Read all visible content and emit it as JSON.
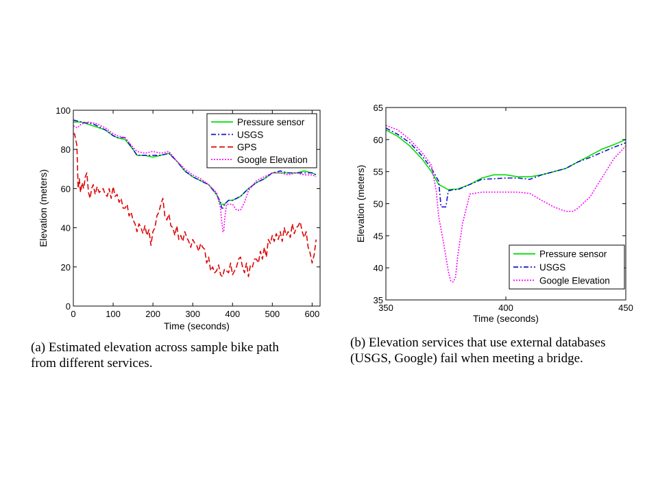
{
  "chart_data": [
    {
      "type": "line",
      "xlabel": "Time (seconds)",
      "ylabel": "Elevation (meters)",
      "xlim": [
        0,
        620
      ],
      "ylim": [
        0,
        100
      ],
      "xticks": [
        0,
        100,
        200,
        300,
        400,
        500,
        600
      ],
      "yticks": [
        0,
        20,
        40,
        60,
        80,
        100
      ],
      "legend_position": "top-right",
      "grid": false,
      "series": [
        {
          "name": "Pressure sensor",
          "color": "#00dd00",
          "style": "solid",
          "x": [
            0,
            20,
            50,
            80,
            100,
            110,
            130,
            150,
            160,
            180,
            200,
            220,
            240,
            260,
            280,
            300,
            320,
            340,
            360,
            370,
            380,
            390,
            400,
            420,
            440,
            460,
            480,
            500,
            520,
            540,
            560,
            580,
            600,
            610
          ],
          "y": [
            94,
            94,
            92,
            90,
            87,
            86,
            85,
            80,
            77,
            77,
            76,
            77,
            78,
            74,
            69,
            66,
            64,
            62,
            57,
            52,
            52,
            54,
            54,
            56,
            60,
            63,
            65,
            68,
            68,
            68,
            68,
            69,
            68,
            67
          ]
        },
        {
          "name": "USGS",
          "color": "#1010cc",
          "style": "dashdot",
          "x": [
            0,
            20,
            50,
            80,
            100,
            110,
            130,
            150,
            160,
            180,
            200,
            220,
            240,
            260,
            280,
            300,
            320,
            340,
            360,
            370,
            373,
            376,
            380,
            390,
            400,
            420,
            440,
            460,
            480,
            500,
            520,
            540,
            560,
            580,
            600,
            610
          ],
          "y": [
            95,
            94,
            93,
            90,
            87,
            86,
            86,
            80,
            77,
            77,
            77,
            77,
            78,
            74,
            69,
            66,
            64,
            62,
            57,
            53,
            50,
            50,
            52,
            54,
            54,
            56,
            60,
            63,
            65,
            68,
            69,
            68,
            68,
            68,
            68,
            67
          ]
        },
        {
          "name": "GPS",
          "color": "#dd0000",
          "style": "dashed",
          "x": [
            0,
            3,
            6,
            9,
            12,
            15,
            18,
            22,
            26,
            30,
            34,
            38,
            42,
            46,
            50,
            55,
            60,
            65,
            70,
            75,
            80,
            85,
            90,
            95,
            100,
            105,
            110,
            115,
            120,
            125,
            130,
            135,
            140,
            145,
            150,
            155,
            160,
            165,
            170,
            175,
            180,
            185,
            190,
            195,
            200,
            205,
            210,
            215,
            220,
            225,
            230,
            235,
            240,
            245,
            250,
            255,
            260,
            265,
            270,
            275,
            280,
            285,
            290,
            295,
            300,
            305,
            310,
            315,
            320,
            325,
            330,
            335,
            340,
            345,
            350,
            355,
            360,
            365,
            370,
            375,
            380,
            385,
            390,
            395,
            400,
            405,
            410,
            415,
            420,
            425,
            430,
            435,
            440,
            445,
            450,
            455,
            460,
            465,
            470,
            475,
            480,
            485,
            490,
            495,
            500,
            505,
            510,
            515,
            520,
            525,
            530,
            535,
            540,
            545,
            550,
            555,
            560,
            565,
            570,
            575,
            580,
            585,
            590,
            595,
            600,
            605,
            610
          ],
          "y": [
            88,
            88,
            85,
            82,
            60,
            65,
            58,
            63,
            60,
            66,
            68,
            58,
            55,
            60,
            62,
            57,
            61,
            58,
            59,
            60,
            57,
            56,
            60,
            55,
            61,
            56,
            57,
            53,
            55,
            50,
            50,
            52,
            46,
            48,
            44,
            42,
            38,
            42,
            40,
            37,
            41,
            36,
            39,
            31,
            38,
            40,
            46,
            48,
            52,
            55,
            46,
            44,
            47,
            41,
            40,
            36,
            41,
            34,
            36,
            33,
            38,
            35,
            33,
            30,
            34,
            32,
            31,
            28,
            32,
            30,
            29,
            22,
            25,
            18,
            20,
            17,
            18,
            21,
            16,
            15,
            19,
            18,
            17,
            22,
            16,
            18,
            20,
            24,
            25,
            20,
            17,
            22,
            15,
            21,
            20,
            24,
            24,
            22,
            28,
            24,
            30,
            25,
            34,
            32,
            36,
            33,
            37,
            34,
            38,
            33,
            40,
            36,
            38,
            35,
            42,
            37,
            40,
            41,
            43,
            38,
            35,
            38,
            30,
            27,
            22,
            26,
            34
          ]
        },
        {
          "name": "Google Elevation",
          "color": "#ff00ff",
          "style": "dotted",
          "x": [
            0,
            10,
            20,
            40,
            60,
            80,
            100,
            110,
            130,
            150,
            160,
            180,
            200,
            220,
            240,
            260,
            280,
            300,
            320,
            340,
            360,
            370,
            372,
            376,
            378,
            380,
            385,
            390,
            400,
            410,
            420,
            430,
            440,
            460,
            480,
            500,
            520,
            540,
            560,
            580,
            600,
            610
          ],
          "y": [
            92,
            91,
            93,
            94,
            93,
            91,
            88,
            87,
            86,
            81,
            79,
            78,
            79,
            78,
            79,
            74,
            70,
            67,
            65,
            62,
            58,
            50,
            45,
            38,
            38,
            44,
            52,
            52,
            52,
            49,
            49,
            53,
            59,
            64,
            66,
            68,
            68,
            67,
            68,
            67,
            67,
            66
          ]
        }
      ]
    },
    {
      "type": "line",
      "xlabel": "Time (seconds)",
      "ylabel": "Elevation (meters)",
      "xlim": [
        350,
        450
      ],
      "ylim": [
        35,
        65
      ],
      "xticks": [
        350,
        400,
        450
      ],
      "yticks": [
        35,
        40,
        45,
        50,
        55,
        60,
        65
      ],
      "legend_position": "bottom-right",
      "grid": false,
      "series": [
        {
          "name": "Pressure sensor",
          "color": "#00dd00",
          "style": "solid",
          "x": [
            350,
            355,
            360,
            365,
            369,
            372,
            376,
            380,
            385,
            390,
            395,
            400,
            405,
            410,
            415,
            420,
            425,
            430,
            435,
            440,
            445,
            450
          ],
          "y": [
            61.5,
            60.5,
            59,
            57,
            55,
            53,
            52.2,
            52.3,
            53,
            54,
            54.5,
            54.5,
            54.2,
            54.2,
            54.5,
            55,
            55.5,
            56.5,
            57.5,
            58.5,
            59.2,
            60
          ]
        },
        {
          "name": "USGS",
          "color": "#1010cc",
          "style": "dashdot",
          "x": [
            350,
            355,
            360,
            365,
            369,
            372,
            373,
            375,
            376,
            378,
            380,
            385,
            390,
            395,
            400,
            405,
            410,
            415,
            420,
            425,
            430,
            435,
            440,
            445,
            450
          ],
          "y": [
            61.8,
            60.8,
            59.5,
            57.5,
            55.5,
            53.5,
            49.5,
            49.5,
            52,
            52.2,
            52.2,
            53,
            53.8,
            53.9,
            54,
            54,
            53.8,
            54.5,
            55,
            55.5,
            56.5,
            57.2,
            58,
            58.8,
            59.5
          ]
        },
        {
          "name": "Google Elevation",
          "color": "#ff00ff",
          "style": "dotted",
          "x": [
            350,
            355,
            360,
            365,
            369,
            371,
            372,
            374,
            376,
            377,
            378,
            379,
            380,
            382,
            385,
            390,
            395,
            400,
            405,
            410,
            415,
            420,
            425,
            428,
            430,
            435,
            440,
            445,
            450
          ],
          "y": [
            62.2,
            61.5,
            60,
            58,
            56,
            52,
            48,
            44,
            39.5,
            38,
            37.8,
            38.5,
            42,
            47,
            51.5,
            51.8,
            51.8,
            51.8,
            51.8,
            51.6,
            50.5,
            49.5,
            48.8,
            48.8,
            49.3,
            51,
            54,
            57,
            59
          ]
        }
      ]
    }
  ],
  "captions": {
    "a_line1": "(a)  Estimated elevation across sample bike path",
    "a_line2": "from different services.",
    "b_line1": "(b)  Elevation services that use external databases",
    "b_line2": "(USGS, Google) fail when meeting a bridge."
  }
}
